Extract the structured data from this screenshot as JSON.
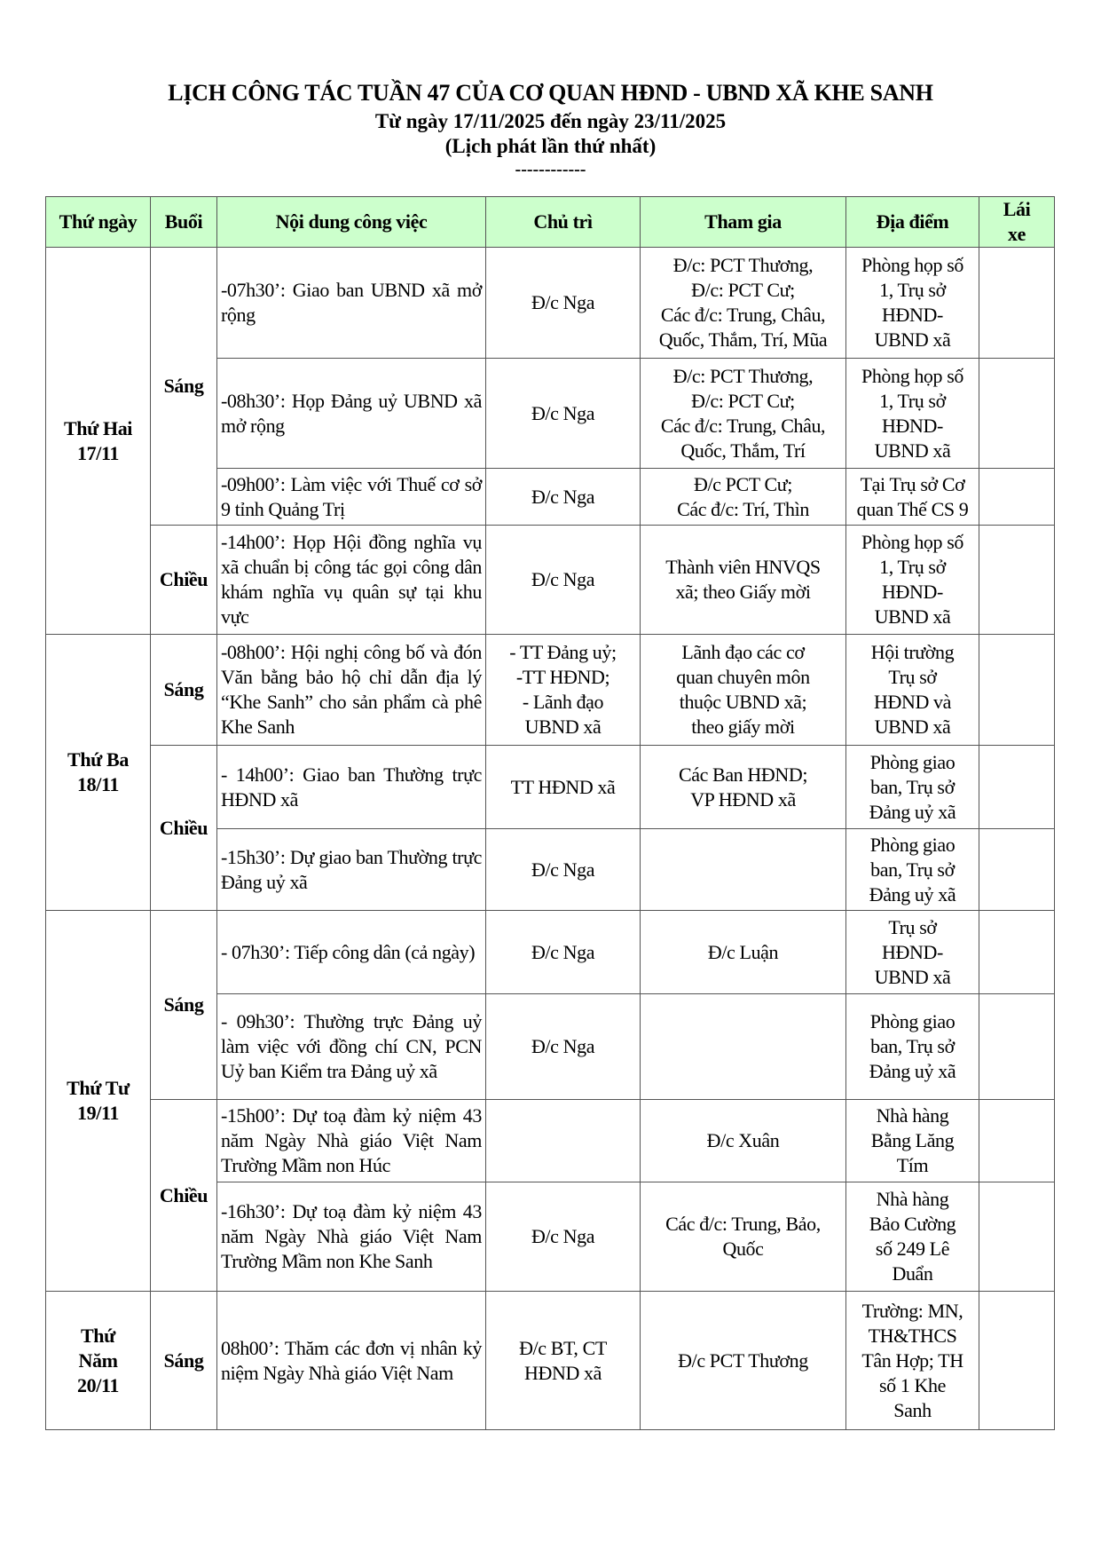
{
  "header": {
    "title": "LỊCH CÔNG TÁC TUẦN 47 CỦA CƠ QUAN HĐND - UBND XÃ KHE SANH",
    "subtitle": "Từ ngày 17/11/2025 đến ngày 23/11/2025",
    "edition": "(Lịch phát lần thứ nhất)",
    "separator": "------------"
  },
  "colors": {
    "header_bg": "#ccffcc",
    "border": "#555555"
  },
  "columns": [
    "Thứ ngày",
    "Buổi",
    "Nội dung công việc",
    "Chủ trì",
    "Tham gia",
    "Địa điểm",
    "Lái\nxe"
  ],
  "days": [
    {
      "label": "Thứ Hai\n17/11",
      "sessions": [
        {
          "label": "Sáng",
          "items": [
            {
              "content": "-07h30’: Giao ban UBND xã mở rộng",
              "chair": "Đ/c Nga",
              "participants": "Đ/c: PCT Thương,\nĐ/c: PCT Cư;\nCác đ/c: Trung, Châu,\nQuốc, Thắm, Trí, Mũa",
              "location": "Phòng họp số\n1, Trụ sở\nHĐND-\nUBND xã",
              "driver": ""
            },
            {
              "content": "-08h30’: Họp Đảng uỷ UBND xã mở rộng",
              "chair": "Đ/c Nga",
              "participants": "Đ/c: PCT Thương,\nĐ/c: PCT Cư;\nCác đ/c: Trung, Châu,\nQuốc, Thắm, Trí",
              "location": "Phòng họp số\n1, Trụ sở\nHĐND-\nUBND xã",
              "driver": ""
            },
            {
              "content": "-09h00’: Làm việc với Thuế cơ sở 9 tỉnh Quảng Trị",
              "chair": "Đ/c Nga",
              "participants": "Đ/c PCT Cư;\nCác đ/c: Trí, Thìn",
              "location": "Tại Trụ sở Cơ\nquan Thế CS 9",
              "driver": ""
            }
          ]
        },
        {
          "label": "Chiều",
          "items": [
            {
              "content": "-14h00’: Họp Hội đồng nghĩa vụ xã chuẩn bị công tác gọi công dân khám nghĩa vụ quân sự tại khu vực",
              "chair": "Đ/c Nga",
              "participants": "Thành viên HNVQS\nxã; theo Giấy mời",
              "location": "Phòng họp số\n1, Trụ sở\nHĐND-\nUBND xã",
              "driver": ""
            }
          ]
        }
      ]
    },
    {
      "label": "Thứ Ba\n18/11",
      "sessions": [
        {
          "label": "Sáng",
          "items": [
            {
              "content": "-08h00’: Hội nghị công bố và đón Văn bằng bảo hộ chỉ dẫn địa lý “Khe Sanh” cho sản phẩm cà phê Khe Sanh",
              "chair": "- TT Đảng uỷ;\n-TT HĐND;\n- Lãnh đạo\nUBND xã",
              "participants": "Lãnh đạo các cơ\nquan chuyên môn\nthuộc UBND xã;\ntheo giấy mời",
              "location": "Hội trường\nTrụ sở\nHĐND và\nUBND xã",
              "driver": ""
            }
          ]
        },
        {
          "label": "Chiều",
          "items": [
            {
              "content": "- 14h00’: Giao ban Thường trực HĐND xã",
              "chair": "TT HĐND xã",
              "participants": "Các Ban HĐND;\nVP HĐND xã",
              "location": "Phòng giao\nban, Trụ sở\nĐảng uỷ xã",
              "driver": ""
            },
            {
              "content": "-15h30’: Dự giao ban Thường trực Đảng uỷ xã",
              "chair": "Đ/c Nga",
              "participants": "",
              "location": "Phòng giao\nban, Trụ sở\nĐảng uỷ xã",
              "driver": ""
            }
          ]
        }
      ]
    },
    {
      "label": "Thứ Tư\n19/11",
      "sessions": [
        {
          "label": "Sáng",
          "items": [
            {
              "content": "- 07h30’: Tiếp công dân (cả ngày)",
              "chair": "Đ/c Nga",
              "participants": "Đ/c Luận",
              "location": "Trụ sở\nHĐND-\nUBND xã",
              "driver": ""
            },
            {
              "content": "- 09h30’: Thường trực Đảng uỷ làm việc với đồng chí CN, PCN Uỷ ban Kiểm tra Đảng uỷ xã",
              "chair": "Đ/c Nga",
              "participants": "",
              "location": "Phòng giao\nban, Trụ sở\nĐảng uỷ xã",
              "driver": ""
            }
          ]
        },
        {
          "label": "Chiều",
          "items": [
            {
              "content": "-15h00’: Dự toạ đàm kỷ niệm 43 năm Ngày Nhà giáo Việt Nam Trường Mầm non Húc",
              "chair": "",
              "participants": "Đ/c Xuân",
              "location": "Nhà hàng\nBằng Lăng\nTím",
              "driver": ""
            },
            {
              "content": "-16h30’: Dự toạ đàm kỷ niệm 43 năm Ngày Nhà giáo Việt Nam Trường Mầm non Khe Sanh",
              "chair": "Đ/c Nga",
              "participants": "Các đ/c: Trung, Bảo,\nQuốc",
              "location": "Nhà hàng\nBảo Cường\nsố 249 Lê\nDuẩn",
              "driver": ""
            }
          ]
        }
      ]
    },
    {
      "label": "Thứ\nNăm\n20/11",
      "sessions": [
        {
          "label": "Sáng",
          "items": [
            {
              "content": "08h00’: Thăm các đơn vị nhân kỷ niệm Ngày Nhà giáo Việt Nam",
              "chair": "Đ/c BT, CT\nHĐND xã",
              "participants": "Đ/c PCT Thương",
              "location": "Trường: MN,\nTH&THCS\nTân Hợp; TH\nsố 1 Khe\nSanh",
              "driver": ""
            }
          ]
        }
      ]
    }
  ]
}
